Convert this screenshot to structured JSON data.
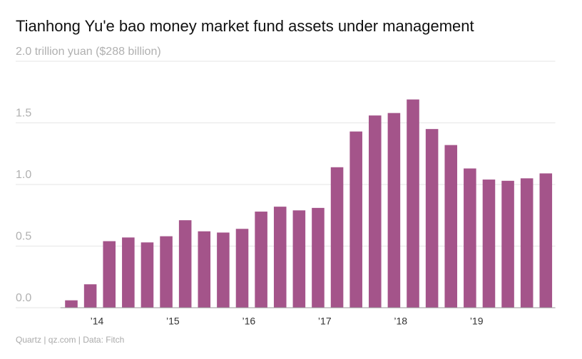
{
  "chart_data": {
    "type": "bar",
    "title": "Tianhong Yu'e bao money market fund assets under management",
    "source": "Quartz | qz.com | Data: Fitch",
    "categories": [
      null,
      "’14",
      null,
      null,
      null,
      "’15",
      null,
      null,
      null,
      "’16",
      null,
      null,
      null,
      "’17",
      null,
      null,
      null,
      "’18",
      null,
      null,
      null,
      "’19",
      null,
      null,
      null,
      null
    ],
    "values": [
      0.06,
      0.19,
      0.54,
      0.57,
      0.53,
      0.58,
      0.71,
      0.62,
      0.61,
      0.64,
      0.78,
      0.82,
      0.79,
      0.81,
      1.14,
      1.43,
      1.56,
      1.58,
      1.69,
      1.45,
      1.32,
      1.13,
      1.04,
      1.03,
      1.05,
      1.09
    ],
    "color": "#a4548a",
    "ylim": [
      0,
      2.0
    ],
    "yticks": [
      {
        "value": 0,
        "label": "0.0"
      },
      0.5,
      {
        "value": 1,
        "label": "1.0"
      },
      1.5,
      {
        "value": 2,
        "label": "2.0 trillion yuan ($288 billion)"
      }
    ],
    "grid": true
  }
}
